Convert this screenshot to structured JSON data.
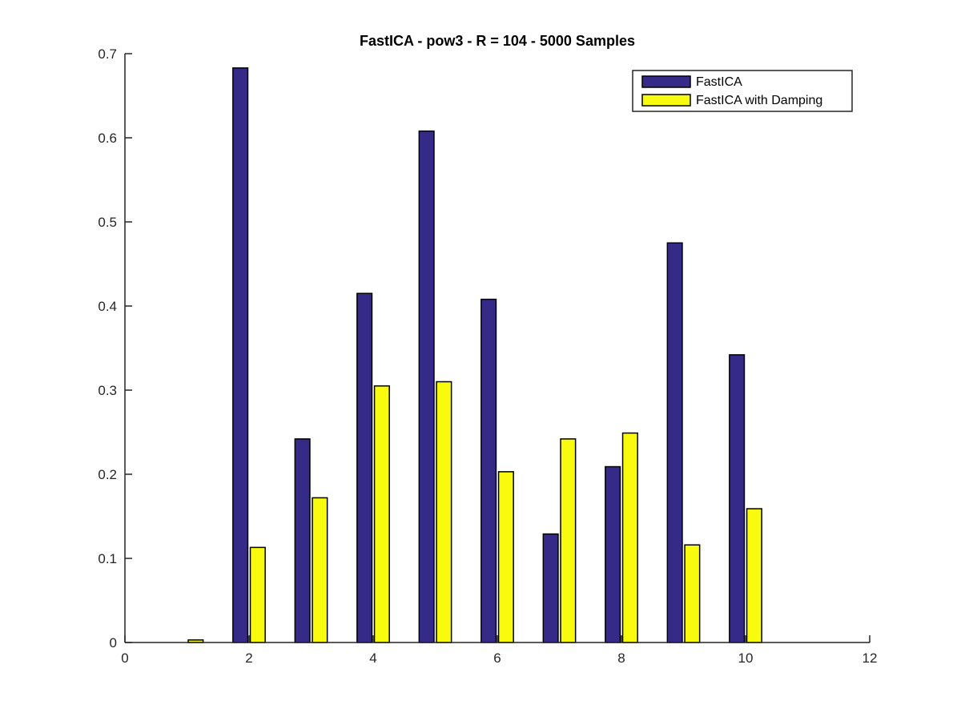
{
  "chart_data": {
    "type": "bar",
    "title": "FastICA - pow3 - R = 104 - 5000 Samples",
    "xlabel": "",
    "ylabel": "",
    "x": [
      1,
      2,
      3,
      4,
      5,
      6,
      7,
      8,
      9,
      10
    ],
    "xlim": [
      0,
      12
    ],
    "ylim": [
      0,
      0.7
    ],
    "xticks": [
      "0",
      "2",
      "4",
      "6",
      "8",
      "10",
      "12"
    ],
    "yticks": [
      "0",
      "0.1",
      "0.2",
      "0.3",
      "0.4",
      "0.5",
      "0.6",
      "0.7"
    ],
    "grid": false,
    "legend_position": "top-right",
    "series": [
      {
        "name": "FastICA",
        "color": "#352A87",
        "values": [
          0.0,
          0.683,
          0.242,
          0.415,
          0.608,
          0.408,
          0.129,
          0.209,
          0.475,
          0.342
        ]
      },
      {
        "name": "FastICA with Damping",
        "color": "#F9FB0E",
        "values": [
          0.003,
          0.113,
          0.172,
          0.305,
          0.31,
          0.203,
          0.242,
          0.249,
          0.116,
          0.159
        ]
      }
    ]
  }
}
